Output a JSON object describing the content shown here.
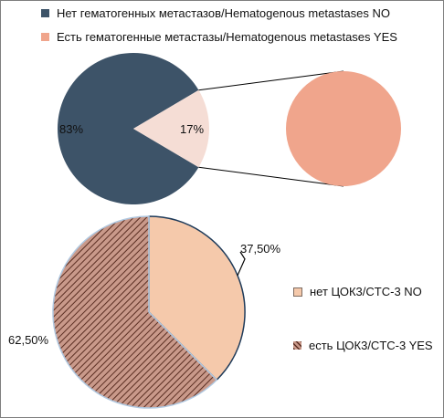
{
  "chart_data": [
    {
      "type": "pie",
      "legend_placement": "top",
      "legend": [
        "Нет гематогенных метастазов/Hematogenous metastases  NO",
        "Есть гематогенные метастазы/Hematogenous metastases  YES"
      ],
      "slices": [
        {
          "label": "Нет гематогенных метастазов/Hematogenous metastases  NO",
          "value": 83,
          "display": "83%",
          "color": "#3d5368"
        },
        {
          "label": "Есть гематогенные метастазы/Hematogenous metastases  YES",
          "value": 17,
          "display": "17%",
          "color": "#f5ddd5"
        }
      ],
      "exploded_slice_color": "#f0a58c"
    },
    {
      "type": "pie",
      "legend_placement": "right",
      "legend": [
        "нет ЦОК3/CTC-3 NO",
        "есть ЦОК3/CTC-3 YES"
      ],
      "slices": [
        {
          "label": "нет ЦОК3/CTC-3 NO",
          "value": 37.5,
          "display": "37,50%",
          "color": "#f5c9ab"
        },
        {
          "label": "есть ЦОК3/CTC-3 YES",
          "value": 62.5,
          "display": "62,50%",
          "color": "#c9998a",
          "pattern": "diagonal-hatch"
        }
      ]
    }
  ]
}
